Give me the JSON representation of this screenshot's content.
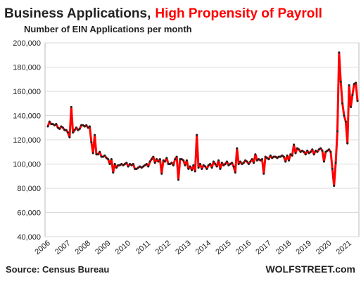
{
  "chart_data": {
    "type": "line",
    "title": "Business Applications,",
    "title_highlight": "High Propensity of Payroll",
    "subtitle": "Number of EIN Applications per month",
    "source": "Source: Census Bureau",
    "brand": "WOLFSTREET.com",
    "categories": [
      "2006",
      null,
      null,
      null,
      null,
      null,
      null,
      null,
      null,
      null,
      null,
      null,
      "2007",
      null,
      null,
      null,
      null,
      null,
      null,
      null,
      null,
      null,
      null,
      null,
      "2008",
      null,
      null,
      null,
      null,
      null,
      null,
      null,
      null,
      null,
      null,
      null,
      "2009",
      null,
      null,
      null,
      null,
      null,
      null,
      null,
      null,
      null,
      null,
      null,
      "2010",
      null,
      null,
      null,
      null,
      null,
      null,
      null,
      null,
      null,
      null,
      null,
      "2011",
      null,
      null,
      null,
      null,
      null,
      null,
      null,
      null,
      null,
      null,
      null,
      "2012",
      null,
      null,
      null,
      null,
      null,
      null,
      null,
      null,
      null,
      null,
      null,
      "2013",
      null,
      null,
      null,
      null,
      null,
      null,
      null,
      null,
      null,
      null,
      null,
      "2014",
      null,
      null,
      null,
      null,
      null,
      null,
      null,
      null,
      null,
      null,
      null,
      "2015",
      null,
      null,
      null,
      null,
      null,
      null,
      null,
      null,
      null,
      null,
      null,
      "2016",
      null,
      null,
      null,
      null,
      null,
      null,
      null,
      null,
      null,
      null,
      null,
      "2017",
      null,
      null,
      null,
      null,
      null,
      null,
      null,
      null,
      null,
      null,
      null,
      "2018",
      null,
      null,
      null,
      null,
      null,
      null,
      null,
      null,
      null,
      null,
      null,
      "2019",
      null,
      null,
      null,
      null,
      null,
      null,
      null,
      null,
      null,
      null,
      null,
      "2020",
      null,
      null,
      null,
      null,
      null,
      null,
      null,
      null,
      null,
      null,
      null,
      "2021",
      null,
      null,
      null,
      null,
      null
    ],
    "series": [
      {
        "color": "#ff0000",
        "marker_color": "#222222",
        "values": [
          131000,
          135000,
          133000,
          133000,
          132000,
          133000,
          130000,
          129000,
          131000,
          130000,
          128000,
          128000,
          126000,
          122000,
          147000,
          126000,
          128000,
          130000,
          128000,
          129000,
          132000,
          132000,
          131000,
          132000,
          130000,
          131000,
          118000,
          109000,
          124000,
          108000,
          108000,
          110000,
          106000,
          106000,
          107000,
          105000,
          104000,
          100000,
          104000,
          93000,
          100000,
          97000,
          99000,
          99000,
          100000,
          99000,
          100000,
          101000,
          98000,
          100000,
          99000,
          100000,
          96000,
          96000,
          97000,
          98000,
          97000,
          98000,
          99000,
          100000,
          98000,
          102000,
          104000,
          106000,
          101000,
          104000,
          102000,
          104000,
          92000,
          103000,
          102000,
          105000,
          100000,
          100000,
          101000,
          99000,
          104000,
          106000,
          87000,
          104000,
          104000,
          103000,
          99000,
          103000,
          96000,
          98000,
          95000,
          99000,
          94000,
          124000,
          97000,
          100000,
          96000,
          99000,
          98000,
          96000,
          99000,
          100000,
          97000,
          102000,
          100000,
          98000,
          103000,
          96000,
          101000,
          99000,
          100000,
          102000,
          99000,
          100000,
          101000,
          98000,
          93000,
          113000,
          100000,
          102000,
          100000,
          101000,
          103000,
          102000,
          100000,
          102000,
          104000,
          101000,
          108000,
          103000,
          104000,
          103000,
          104000,
          92000,
          106000,
          105000,
          104000,
          107000,
          105000,
          106000,
          106000,
          105000,
          106000,
          106000,
          107000,
          106000,
          102000,
          107000,
          103000,
          108000,
          107000,
          116000,
          109000,
          113000,
          112000,
          110000,
          111000,
          110000,
          108000,
          111000,
          109000,
          110000,
          112000,
          108000,
          111000,
          110000,
          112000,
          113000,
          111000,
          102000,
          110000,
          111000,
          112000,
          110000,
          96000,
          82000,
          101000,
          127000,
          192000,
          168000,
          150000,
          140000,
          135000,
          117000,
          165000,
          147000,
          157000,
          166000,
          167000,
          152000
        ]
      }
    ],
    "ylim": [
      40000,
      200000
    ],
    "yticks": [
      {
        "value": 40000,
        "label": "40,000"
      },
      {
        "value": 60000,
        "label": "60,000"
      },
      {
        "value": 80000,
        "label": "80,000"
      },
      {
        "value": 100000,
        "label": "100,000"
      },
      {
        "value": 120000,
        "label": "120,000"
      },
      {
        "value": 140000,
        "label": "140,000"
      },
      {
        "value": 160000,
        "label": "160,000"
      },
      {
        "value": 180000,
        "label": "180,000"
      },
      {
        "value": 200000,
        "label": "200,000"
      }
    ],
    "grid": true
  }
}
